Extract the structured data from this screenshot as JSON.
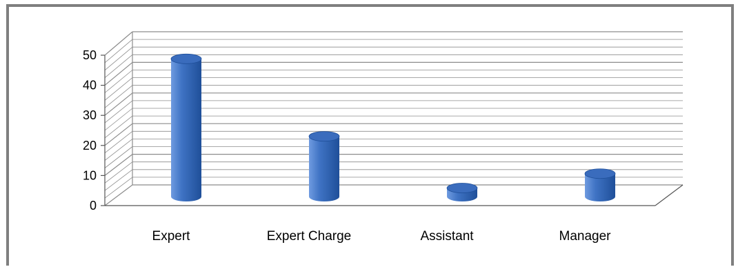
{
  "chart_data": {
    "type": "bar",
    "style": "3d-cylinder",
    "categories": [
      "Expert",
      "Expert Charge",
      "Assistant",
      "Manager"
    ],
    "values": [
      48,
      21,
      3,
      8
    ],
    "series": [
      {
        "values": [
          48,
          21,
          3,
          8
        ]
      }
    ],
    "ylim": [
      0,
      50
    ],
    "yticks": [
      0,
      10,
      20,
      30,
      40,
      50
    ],
    "ytick_labels": [
      "0",
      "10",
      "20",
      "30",
      "40",
      "50"
    ],
    "minor_step": 2.5,
    "title": "",
    "xlabel": "",
    "ylabel": "",
    "grid": true,
    "legend": "none",
    "colors": {
      "bar_light": "#6f9be0",
      "bar_mid": "#3f73c4",
      "bar_dark": "#1f4f99",
      "bar_top": "#3a6cbd",
      "grid": "#8c8c8c",
      "frame": "#7f7f7f"
    }
  }
}
